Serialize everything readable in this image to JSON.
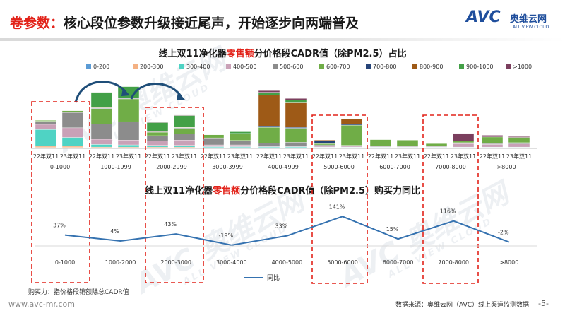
{
  "header": {
    "title_prefix": "卷参数：",
    "title_main": "核心段位参数升级接近尾声，开始逐步向两端普及"
  },
  "logo": {
    "brand": "AVC",
    "cn_name": "奥维云网",
    "tagline": "ALL VIEW CLOUD"
  },
  "watermarks": [
    {
      "main": "AVC 奥维云网",
      "sub": "ALL VIEW CLOUD"
    },
    {
      "main": "AVC 奥维云网",
      "sub": "ALL VIEW CLOUD"
    },
    {
      "main": "AVC 奥维云网",
      "sub": "ALL VIEW CLOUD"
    }
  ],
  "chart1_title": {
    "prefix": "线上双11净化器",
    "highlight": "零售额",
    "suffix": "分价格段CADR值（除PM2.5）占比"
  },
  "chart2_title": {
    "prefix": "线上双11净化器",
    "highlight": "零售额",
    "suffix": "分价格段CADR值（除PM2.5）购买力同比"
  },
  "footnote": "购买力：指价格段销额除总CADR值",
  "site": "www.avc-mr.com",
  "source": "数据来源：奥维云网（AVC）线上渠道监测数据",
  "page_number": "-5-",
  "chart_data": [
    {
      "type": "bar",
      "stacked": true,
      "title": "线上双11净化器零售额分价格段CADR值（除PM2.5）占比",
      "group_categories": [
        "0-1000",
        "1000-1999",
        "2000-2999",
        "3000-3999",
        "4000-4999",
        "5000-6000",
        "6000-7000",
        "7000-8000",
        ">8000"
      ],
      "bar_labels": [
        "22年双11",
        "23年双11"
      ],
      "legend_position": "top",
      "series": [
        {
          "name": "0-200",
          "color": "#5b9bd5",
          "values": [
            [
              0.2,
              0.2
            ],
            [
              0.1,
              0.1
            ],
            [
              0.1,
              0.1
            ],
            [
              0.1,
              0.1
            ],
            [
              0.1,
              0.1
            ],
            [
              0.1,
              0.1
            ],
            [
              0.1,
              0.1
            ],
            [
              0.1,
              0.1
            ],
            [
              0.1,
              0.1
            ]
          ]
        },
        {
          "name": "200-300",
          "color": "#f4b183",
          "values": [
            [
              0.3,
              0.3
            ],
            [
              0.2,
              0.2
            ],
            [
              0.2,
              0.2
            ],
            [
              0.1,
              0.1
            ],
            [
              0.1,
              0.1
            ],
            [
              0.1,
              0.1
            ],
            [
              0.1,
              0.1
            ],
            [
              0.1,
              0.1
            ],
            [
              0.1,
              0.1
            ]
          ]
        },
        {
          "name": "300-400",
          "color": "#4fd3c4",
          "values": [
            [
              3.8,
              2.0
            ],
            [
              0.6,
              0.5
            ],
            [
              0.4,
              0.4
            ],
            [
              0.2,
              0.2
            ],
            [
              0.2,
              0.2
            ],
            [
              0.1,
              0.1
            ],
            [
              0.1,
              0.1
            ],
            [
              0.1,
              0.1
            ],
            [
              0.1,
              0.1
            ]
          ]
        },
        {
          "name": "400-500",
          "color": "#c9a1b7",
          "values": [
            [
              1.2,
              2.2
            ],
            [
              1.2,
              1.1
            ],
            [
              1.0,
              1.2
            ],
            [
              0.4,
              0.4
            ],
            [
              0.2,
              0.2
            ],
            [
              0.2,
              0.2
            ],
            [
              0.1,
              0.1
            ],
            [
              0.1,
              0.8
            ],
            [
              0.6,
              0.7
            ]
          ]
        },
        {
          "name": "500-600",
          "color": "#8c8c8c",
          "values": [
            [
              0.7,
              3.5
            ],
            [
              3.5,
              4.2
            ],
            [
              1.2,
              1.4
            ],
            [
              1.6,
              1.0
            ],
            [
              0.6,
              0.8
            ],
            [
              0.3,
              0.2
            ],
            [
              0.2,
              0.2
            ],
            [
              0.2,
              0.2
            ],
            [
              0.2,
              0.3
            ]
          ]
        },
        {
          "name": "600-700",
          "color": "#70ad47",
          "values": [
            [
              0.2,
              0.4
            ],
            [
              3.5,
              5.2
            ],
            [
              0.8,
              1.3
            ],
            [
              0.7,
              1.5
            ],
            [
              3.6,
              3.2
            ],
            [
              0.3,
              4.6
            ],
            [
              1.4,
              1.3
            ],
            [
              0.5,
              0.4
            ],
            [
              1.5,
              1.2
            ]
          ]
        },
        {
          "name": "700-800",
          "color": "#264478",
          "values": [
            [
              0.0,
              0.0
            ],
            [
              0.1,
              0.1
            ],
            [
              0.1,
              0.1
            ],
            [
              0.0,
              0.0
            ],
            [
              0.2,
              0.2
            ],
            [
              0.6,
              0.2
            ],
            [
              0.0,
              0.0
            ],
            [
              0.0,
              0.0
            ],
            [
              0.0,
              0.0
            ]
          ]
        },
        {
          "name": "800-900",
          "color": "#9e5a17",
          "values": [
            [
              0.0,
              0.0
            ],
            [
              0.1,
              0.1
            ],
            [
              0.1,
              0.1
            ],
            [
              0.0,
              0.1
            ],
            [
              7.2,
              5.6
            ],
            [
              0.2,
              1.2
            ],
            [
              0.0,
              0.0
            ],
            [
              0.0,
              0.0
            ],
            [
              0.0,
              0.0
            ]
          ]
        },
        {
          "name": "900-1000",
          "color": "#43a047",
          "values": [
            [
              0.0,
              0.0
            ],
            [
              3.5,
              2.6
            ],
            [
              2.0,
              2.7
            ],
            [
              0.0,
              0.4
            ],
            [
              0.6,
              0.6
            ],
            [
              0.0,
              0.0
            ],
            [
              0.0,
              0.0
            ],
            [
              0.0,
              0.0
            ],
            [
              0.0,
              0.0
            ]
          ]
        },
        {
          "name": ">1000",
          "color": "#7b3f5e",
          "values": [
            [
              0.0,
              0.0
            ],
            [
              0.0,
              0.0
            ],
            [
              0.1,
              0.1
            ],
            [
              0.0,
              0.0
            ],
            [
              0.4,
              0.4
            ],
            [
              0.0,
              0.0
            ],
            [
              0.0,
              0.0
            ],
            [
              0.0,
              1.7
            ],
            [
              0.4,
              0.2
            ]
          ]
        }
      ],
      "ylim": [
        0,
        16
      ]
    },
    {
      "type": "line",
      "title": "线上双11净化器零售额分价格段CADR值（除PM2.5）购买力同比",
      "categories": [
        "0-1000",
        "1000-2000",
        "2000-3000",
        "3000-4000",
        "4000-5000",
        "5000-6000",
        "6000-7000",
        "7000-8000",
        ">8000"
      ],
      "series": [
        {
          "name": "同比",
          "color": "#3572b0",
          "values": [
            37,
            4,
            43,
            -19,
            33,
            141,
            15,
            116,
            -2
          ],
          "labels": [
            "37%",
            "4%",
            "43%",
            "-19%",
            "33%",
            "141%",
            "15%",
            "116%",
            "-2%"
          ]
        }
      ],
      "ylim": [
        -40,
        160
      ],
      "legend_position": "bottom"
    }
  ]
}
